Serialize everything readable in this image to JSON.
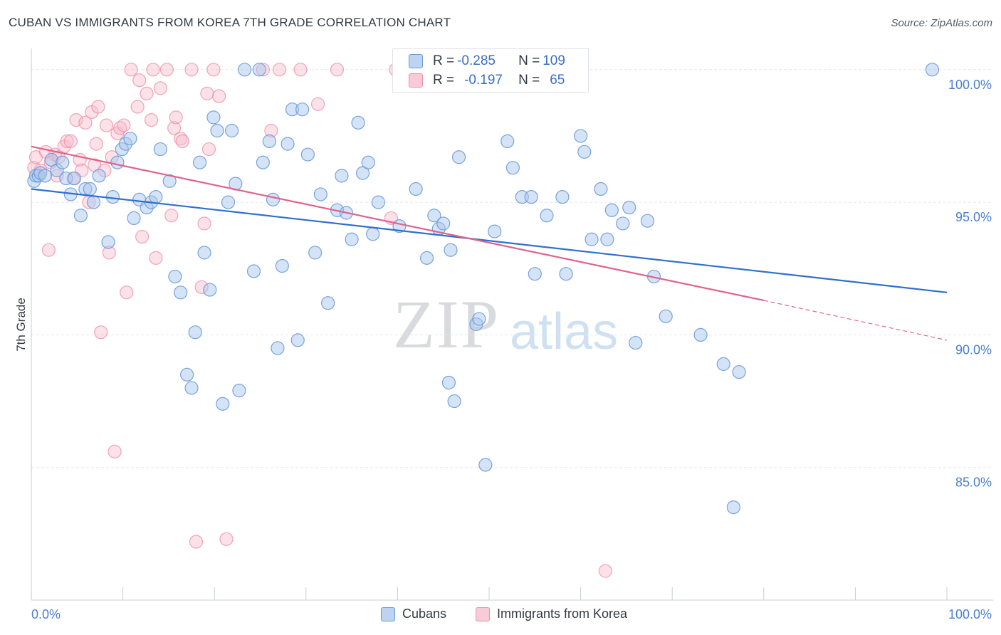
{
  "title": "CUBAN VS IMMIGRANTS FROM KOREA 7TH GRADE CORRELATION CHART",
  "source": "Source: ZipAtlas.com",
  "watermark": {
    "left": "ZIP",
    "right": "atlas"
  },
  "legend_top": {
    "rows": [
      {
        "r_label": "R = ",
        "r_value": "-0.285",
        "n_label": "N = ",
        "n_value": "109"
      },
      {
        "r_label": "R = ",
        "r_value": "-0.197",
        "n_label": "N = ",
        "n_value": "65"
      }
    ]
  },
  "legend_bottom": {
    "cubans": "Cubans",
    "korea": "Immigrants from Korea"
  },
  "colors": {
    "cubans_fill": "#a9c7ee",
    "cubans_stroke": "#6a9ad8",
    "cubans_line": "#2f6fce",
    "korea_fill": "#f7bccd",
    "korea_stroke": "#ee8faa",
    "korea_line": "#e0628d",
    "grid": "#e3e6ea",
    "tick_text": "#4a7fcf"
  },
  "chart_data": {
    "type": "scatter",
    "title": "CUBAN VS IMMIGRANTS FROM KOREA 7TH GRADE CORRELATION CHART",
    "xlabel": "",
    "ylabel": "7th Grade",
    "xlim": [
      0,
      100
    ],
    "ylim": [
      80,
      100.8
    ],
    "x_tick_labels": [
      "0.0%",
      "100.0%"
    ],
    "y_ticks": [
      {
        "value": 100,
        "label": "100.0%"
      },
      {
        "value": 95,
        "label": "95.0%"
      },
      {
        "value": 90,
        "label": "90.0%"
      },
      {
        "value": 85,
        "label": "85.0%"
      }
    ],
    "grid": true,
    "series": [
      {
        "name": "Cubans",
        "r": -0.285,
        "n": 109,
        "trend": {
          "x0": 0,
          "y0": 95.5,
          "x1": 100,
          "y1": 91.6
        },
        "points": [
          [
            0.3,
            95.8
          ],
          [
            0.5,
            96.0
          ],
          [
            0.8,
            96.0
          ],
          [
            1.0,
            96.1
          ],
          [
            1.5,
            96.0
          ],
          [
            2.2,
            96.6
          ],
          [
            2.8,
            96.2
          ],
          [
            3.4,
            96.5
          ],
          [
            3.8,
            95.9
          ],
          [
            4.3,
            95.3
          ],
          [
            4.7,
            95.9
          ],
          [
            5.4,
            94.5
          ],
          [
            5.9,
            95.5
          ],
          [
            6.4,
            95.5
          ],
          [
            6.8,
            95.0
          ],
          [
            7.4,
            96.0
          ],
          [
            8.4,
            93.5
          ],
          [
            8.9,
            95.2
          ],
          [
            9.4,
            96.5
          ],
          [
            9.9,
            97.0
          ],
          [
            10.3,
            97.2
          ],
          [
            10.8,
            97.4
          ],
          [
            11.2,
            94.4
          ],
          [
            11.8,
            95.1
          ],
          [
            12.6,
            94.8
          ],
          [
            13.1,
            95.0
          ],
          [
            13.6,
            95.2
          ],
          [
            14.1,
            97.0
          ],
          [
            15.1,
            95.8
          ],
          [
            15.7,
            92.2
          ],
          [
            16.3,
            91.6
          ],
          [
            17.0,
            88.5
          ],
          [
            17.5,
            88.0
          ],
          [
            17.9,
            90.1
          ],
          [
            18.4,
            96.5
          ],
          [
            18.9,
            93.1
          ],
          [
            19.5,
            91.7
          ],
          [
            19.9,
            98.2
          ],
          [
            20.3,
            97.7
          ],
          [
            20.9,
            87.4
          ],
          [
            21.5,
            95.0
          ],
          [
            21.9,
            97.7
          ],
          [
            22.3,
            95.7
          ],
          [
            22.7,
            87.9
          ],
          [
            23.3,
            100.0
          ],
          [
            24.3,
            92.4
          ],
          [
            24.9,
            100.0
          ],
          [
            25.3,
            96.5
          ],
          [
            26.0,
            97.3
          ],
          [
            26.4,
            95.1
          ],
          [
            26.9,
            89.5
          ],
          [
            27.4,
            92.6
          ],
          [
            28.0,
            97.2
          ],
          [
            28.5,
            98.5
          ],
          [
            29.1,
            89.8
          ],
          [
            29.6,
            98.5
          ],
          [
            30.2,
            96.8
          ],
          [
            31.0,
            93.1
          ],
          [
            31.6,
            95.3
          ],
          [
            32.4,
            91.2
          ],
          [
            33.4,
            94.7
          ],
          [
            33.9,
            96.0
          ],
          [
            34.4,
            94.6
          ],
          [
            35.0,
            93.6
          ],
          [
            35.7,
            98.0
          ],
          [
            36.2,
            96.1
          ],
          [
            36.8,
            96.5
          ],
          [
            37.3,
            93.8
          ],
          [
            37.9,
            95.0
          ],
          [
            40.2,
            94.1
          ],
          [
            42.0,
            95.5
          ],
          [
            43.2,
            92.9
          ],
          [
            44.0,
            94.5
          ],
          [
            44.5,
            94.0
          ],
          [
            45.0,
            94.2
          ],
          [
            45.6,
            88.2
          ],
          [
            45.8,
            93.2
          ],
          [
            46.2,
            87.5
          ],
          [
            46.7,
            96.7
          ],
          [
            48.6,
            90.4
          ],
          [
            48.9,
            90.6
          ],
          [
            49.6,
            85.1
          ],
          [
            50.6,
            93.9
          ],
          [
            52.0,
            97.3
          ],
          [
            52.6,
            96.3
          ],
          [
            53.6,
            95.2
          ],
          [
            54.6,
            95.2
          ],
          [
            55.0,
            92.3
          ],
          [
            56.3,
            94.5
          ],
          [
            58.0,
            95.2
          ],
          [
            58.4,
            92.3
          ],
          [
            60.0,
            97.5
          ],
          [
            60.4,
            96.9
          ],
          [
            61.2,
            93.6
          ],
          [
            62.2,
            95.5
          ],
          [
            62.9,
            93.6
          ],
          [
            63.4,
            94.7
          ],
          [
            64.6,
            94.2
          ],
          [
            65.3,
            94.8
          ],
          [
            66.0,
            89.7
          ],
          [
            67.3,
            94.3
          ],
          [
            68.0,
            92.2
          ],
          [
            69.3,
            90.7
          ],
          [
            73.1,
            90.0
          ],
          [
            75.6,
            88.9
          ],
          [
            77.3,
            88.6
          ],
          [
            76.7,
            83.5
          ],
          [
            98.4,
            100.0
          ]
        ]
      },
      {
        "name": "Immigrants from Korea",
        "r": -0.197,
        "n": 65,
        "trend": {
          "x0": 0,
          "y0": 97.1,
          "x1": 80,
          "y1": 91.3,
          "dash_to": {
            "x": 100,
            "y": 89.8
          }
        },
        "points": [
          [
            0.3,
            96.3
          ],
          [
            0.5,
            96.7
          ],
          [
            1.0,
            96.2
          ],
          [
            1.6,
            96.9
          ],
          [
            1.9,
            93.2
          ],
          [
            2.1,
            96.5
          ],
          [
            2.6,
            96.8
          ],
          [
            2.8,
            96.0
          ],
          [
            3.6,
            97.1
          ],
          [
            3.9,
            97.3
          ],
          [
            4.3,
            97.3
          ],
          [
            4.6,
            95.9
          ],
          [
            4.9,
            98.1
          ],
          [
            5.3,
            96.6
          ],
          [
            5.5,
            96.2
          ],
          [
            5.9,
            98.0
          ],
          [
            6.3,
            95.0
          ],
          [
            6.6,
            98.4
          ],
          [
            6.9,
            96.4
          ],
          [
            7.1,
            97.2
          ],
          [
            7.3,
            98.6
          ],
          [
            7.6,
            90.1
          ],
          [
            8.0,
            96.2
          ],
          [
            8.2,
            97.9
          ],
          [
            8.5,
            93.1
          ],
          [
            8.8,
            96.7
          ],
          [
            9.1,
            85.6
          ],
          [
            9.4,
            97.6
          ],
          [
            9.7,
            97.8
          ],
          [
            10.1,
            97.9
          ],
          [
            10.4,
            91.6
          ],
          [
            10.9,
            100.0
          ],
          [
            11.6,
            98.6
          ],
          [
            11.8,
            99.6
          ],
          [
            12.1,
            93.7
          ],
          [
            12.6,
            99.1
          ],
          [
            13.1,
            98.1
          ],
          [
            13.3,
            100.0
          ],
          [
            13.6,
            92.9
          ],
          [
            14.1,
            99.3
          ],
          [
            14.8,
            100.0
          ],
          [
            15.3,
            94.5
          ],
          [
            15.6,
            97.8
          ],
          [
            15.8,
            98.2
          ],
          [
            16.3,
            97.4
          ],
          [
            16.5,
            97.3
          ],
          [
            17.5,
            100.0
          ],
          [
            18.0,
            82.2
          ],
          [
            18.6,
            91.8
          ],
          [
            18.9,
            94.2
          ],
          [
            19.2,
            99.1
          ],
          [
            19.4,
            97.0
          ],
          [
            19.9,
            100.0
          ],
          [
            20.5,
            99.0
          ],
          [
            21.3,
            82.3
          ],
          [
            25.3,
            100.0
          ],
          [
            26.2,
            97.7
          ],
          [
            27.1,
            100.0
          ],
          [
            29.4,
            100.0
          ],
          [
            31.3,
            98.7
          ],
          [
            33.4,
            100.0
          ],
          [
            39.3,
            94.4
          ],
          [
            39.8,
            100.0
          ],
          [
            62.7,
            81.1
          ],
          [
            3.0,
            96.7
          ]
        ]
      }
    ]
  }
}
